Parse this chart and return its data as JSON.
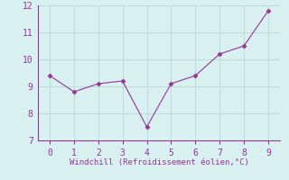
{
  "x": [
    0,
    1,
    2,
    3,
    4,
    5,
    6,
    7,
    8,
    9
  ],
  "y": [
    9.4,
    8.8,
    9.1,
    9.2,
    7.5,
    9.1,
    9.4,
    10.2,
    10.5,
    11.8
  ],
  "xlabel": "Windchill (Refroidissement éolien,°C)",
  "xlim": [
    -0.5,
    9.5
  ],
  "ylim": [
    7,
    12
  ],
  "yticks": [
    7,
    8,
    9,
    10,
    11,
    12
  ],
  "xticks": [
    0,
    1,
    2,
    3,
    4,
    5,
    6,
    7,
    8,
    9
  ],
  "line_color": "#993399",
  "marker": "D",
  "marker_size": 2.5,
  "line_width": 0.8,
  "bg_color": "#d8f0f0",
  "grid_color": "#b8dada",
  "tick_color": "#993399",
  "label_color": "#993399",
  "spine_color": "#993399",
  "font": "monospace",
  "tick_fontsize": 7,
  "xlabel_fontsize": 6.5
}
